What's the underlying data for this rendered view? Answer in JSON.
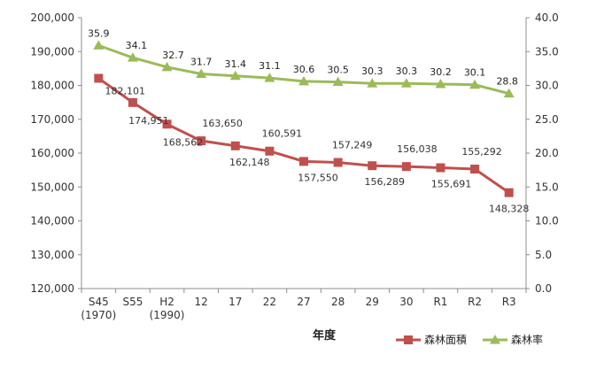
{
  "chart_data": {
    "type": "line",
    "categories": [
      "S45",
      "S55",
      "H2",
      "12",
      "17",
      "22",
      "27",
      "28",
      "29",
      "30",
      "R1",
      "R2",
      "R3"
    ],
    "category_sublabels": [
      "(1970)",
      "",
      "(1990)",
      "",
      "",
      "",
      "",
      "",
      "",
      "",
      "",
      "",
      ""
    ],
    "xlabel": "年度",
    "ylim_left": [
      120000,
      200000
    ],
    "yticks_left": [
      "120,000",
      "130,000",
      "140,000",
      "150,000",
      "160,000",
      "170,000",
      "180,000",
      "190,000",
      "200,000"
    ],
    "ylim_right": [
      0,
      40
    ],
    "yticks_right": [
      "0.0",
      "5.0",
      "10.0",
      "15.0",
      "20.0",
      "25.0",
      "30.0",
      "35.0",
      "40.0"
    ],
    "grid": false,
    "legend_position": "bottom-right",
    "series": [
      {
        "name": "森林面積",
        "axis": "left",
        "color": "#c0504d",
        "marker": "square",
        "values": [
          182101,
          174951,
          168562,
          163650,
          162148,
          160591,
          157550,
          157249,
          156289,
          156038,
          155691,
          155292,
          148328
        ],
        "labels": [
          "182,101",
          "174,951",
          "168,562",
          "163,650",
          "162,148",
          "160,591",
          "157,550",
          "157,249",
          "156,289",
          "156,038",
          "155,691",
          "155,292",
          "148,328"
        ]
      },
      {
        "name": "森林率",
        "axis": "right",
        "color": "#9bbb59",
        "marker": "triangle",
        "values": [
          35.9,
          34.1,
          32.7,
          31.7,
          31.4,
          31.1,
          30.6,
          30.5,
          30.3,
          30.3,
          30.2,
          30.1,
          28.8
        ],
        "labels": [
          "35.9",
          "34.1",
          "32.7",
          "31.7",
          "31.4",
          "31.1",
          "30.6",
          "30.5",
          "30.3",
          "30.3",
          "30.2",
          "30.1",
          "28.8"
        ]
      }
    ]
  }
}
